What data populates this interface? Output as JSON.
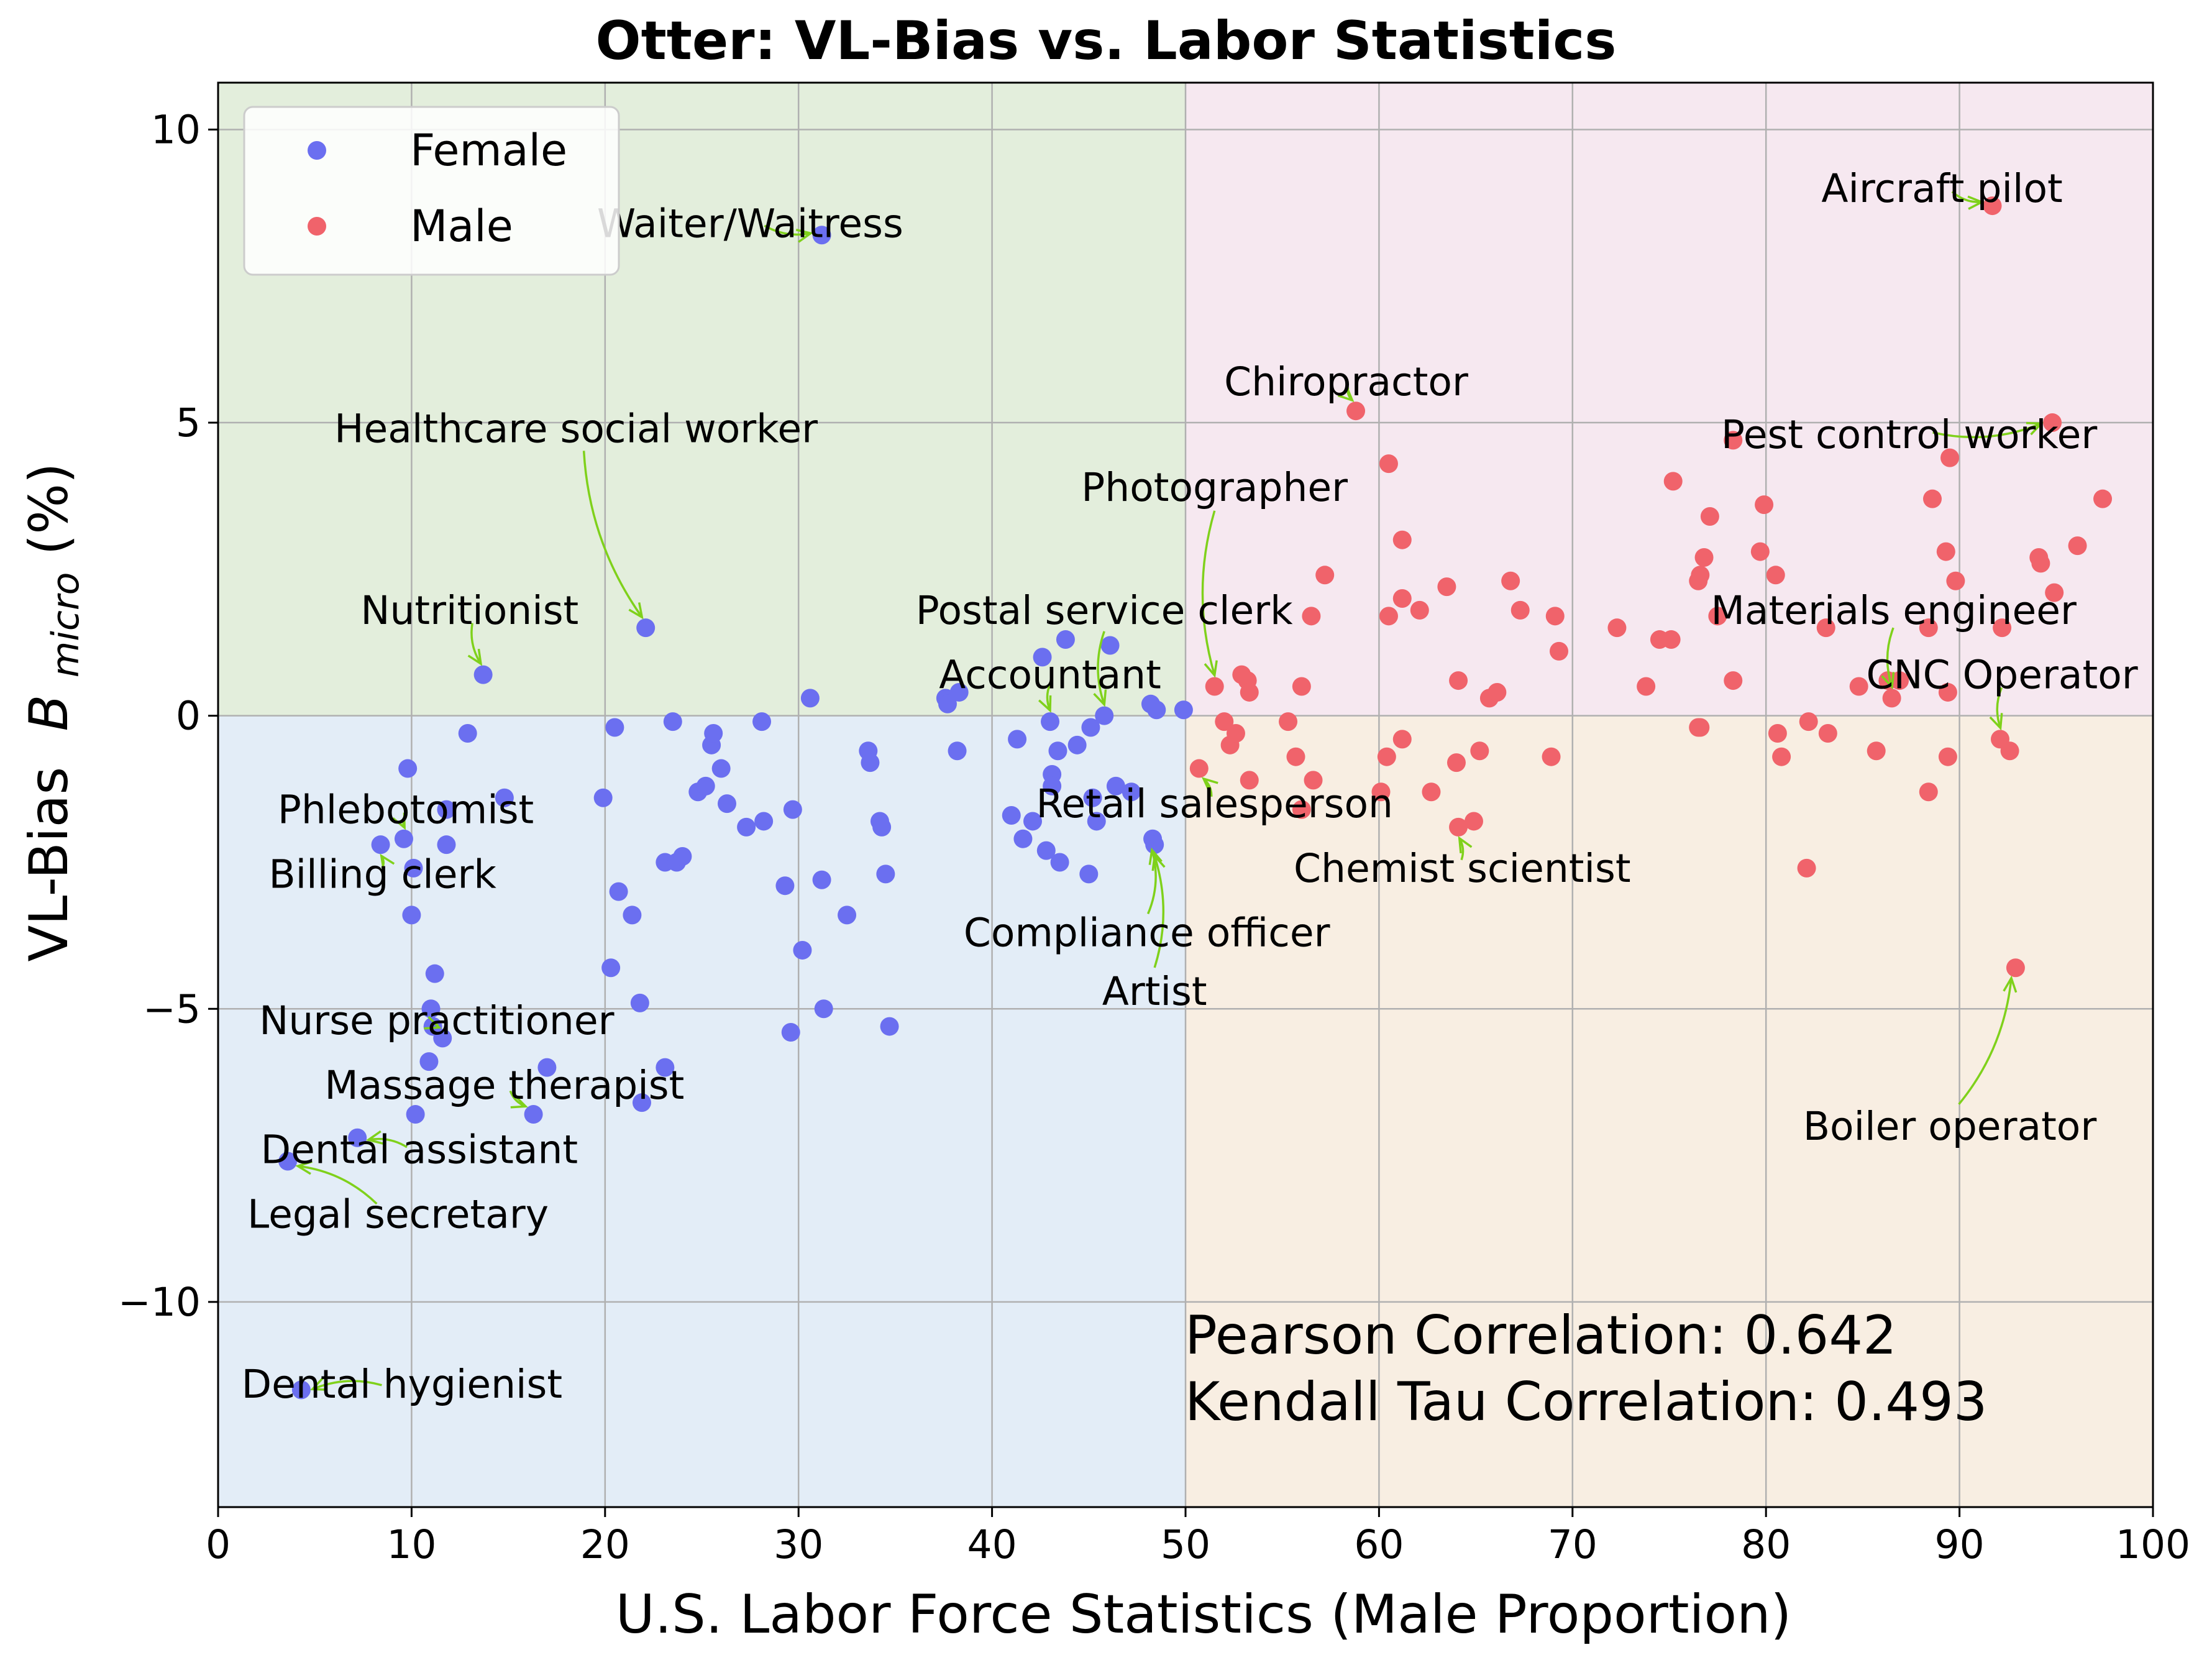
{
  "chart_data": {
    "type": "scatter",
    "title": "Otter: VL-Bias vs. Labor Statistics",
    "xlabel": "U.S. Labor Force Statistics (Male Proportion)",
    "ylabel_main": "VL-Bias",
    "ylabel_symbol": "B",
    "ylabel_sub": "micro",
    "ylabel_unit": "(%)",
    "xlim": [
      0,
      100
    ],
    "ylim": [
      -13.5,
      10.8
    ],
    "x_ticks": [
      0,
      10,
      20,
      30,
      40,
      50,
      60,
      70,
      80,
      90,
      100
    ],
    "y_ticks": [
      -10,
      -5,
      0,
      5,
      10
    ],
    "y_tick_labels": [
      "−10",
      "−5",
      "0",
      "5",
      "10"
    ],
    "grid": true,
    "legend_position": "top-left",
    "colors": {
      "female": "#6b6ff0",
      "male": "#f0636b",
      "quadrant_top_left": "#e3eedc",
      "quadrant_top_right": "#f6e8f0",
      "quadrant_bottom_left": "#e3edf7",
      "quadrant_bottom_right": "#f8eee2",
      "arrow": "#7fd11b"
    },
    "series": [
      {
        "name": "Female",
        "color": "#6b6ff0",
        "points": [
          [
            31.2,
            8.2
          ],
          [
            22.1,
            1.5
          ],
          [
            13.7,
            0.7
          ],
          [
            12.9,
            -0.3
          ],
          [
            14.8,
            -1.4
          ],
          [
            9.8,
            -0.9
          ],
          [
            9.6,
            -2.1
          ],
          [
            8.4,
            -2.2
          ],
          [
            10.1,
            -2.6
          ],
          [
            11.8,
            -1.6
          ],
          [
            11.8,
            -2.2
          ],
          [
            10.0,
            -3.4
          ],
          [
            11.2,
            -4.4
          ],
          [
            11.0,
            -5.0
          ],
          [
            11.1,
            -5.3
          ],
          [
            11.6,
            -5.5
          ],
          [
            10.9,
            -5.9
          ],
          [
            10.2,
            -6.8
          ],
          [
            7.2,
            -7.2
          ],
          [
            3.6,
            -7.6
          ],
          [
            4.3,
            -11.5
          ],
          [
            16.3,
            -6.8
          ],
          [
            17.0,
            -6.0
          ],
          [
            21.9,
            -6.6
          ],
          [
            23.1,
            -6.0
          ],
          [
            21.8,
            -4.9
          ],
          [
            20.3,
            -4.3
          ],
          [
            21.4,
            -3.4
          ],
          [
            20.7,
            -3.0
          ],
          [
            19.9,
            -1.4
          ],
          [
            20.5,
            -0.2
          ],
          [
            23.5,
            -0.1
          ],
          [
            23.1,
            -2.5
          ],
          [
            23.7,
            -2.5
          ],
          [
            24.0,
            -2.4
          ],
          [
            24.8,
            -1.3
          ],
          [
            25.2,
            -1.2
          ],
          [
            25.5,
            -0.5
          ],
          [
            25.6,
            -0.3
          ],
          [
            26.0,
            -0.9
          ],
          [
            26.3,
            -1.5
          ],
          [
            27.3,
            -1.9
          ],
          [
            28.2,
            -1.8
          ],
          [
            28.1,
            -0.1
          ],
          [
            29.3,
            -2.9
          ],
          [
            29.7,
            -1.6
          ],
          [
            29.6,
            -5.4
          ],
          [
            30.2,
            -4.0
          ],
          [
            30.6,
            0.3
          ],
          [
            31.2,
            -2.8
          ],
          [
            31.3,
            -5.0
          ],
          [
            32.5,
            -3.4
          ],
          [
            33.6,
            -0.6
          ],
          [
            33.7,
            -0.8
          ],
          [
            34.2,
            -1.8
          ],
          [
            34.3,
            -1.9
          ],
          [
            34.5,
            -2.7
          ],
          [
            34.7,
            -5.3
          ],
          [
            37.6,
            0.3
          ],
          [
            37.7,
            0.2
          ],
          [
            38.3,
            0.4
          ],
          [
            38.2,
            -0.6
          ],
          [
            41.0,
            -1.7
          ],
          [
            41.3,
            -0.4
          ],
          [
            41.6,
            -2.1
          ],
          [
            42.1,
            -1.8
          ],
          [
            42.6,
            1.0
          ],
          [
            42.8,
            -2.3
          ],
          [
            43.0,
            -0.1
          ],
          [
            43.1,
            -1.0
          ],
          [
            43.1,
            -1.2
          ],
          [
            43.4,
            -0.6
          ],
          [
            43.5,
            -2.5
          ],
          [
            43.8,
            1.3
          ],
          [
            44.4,
            -0.5
          ],
          [
            45.0,
            -2.7
          ],
          [
            45.1,
            -0.2
          ],
          [
            45.2,
            -1.4
          ],
          [
            45.4,
            -1.8
          ],
          [
            45.8,
            0.0
          ],
          [
            46.1,
            1.2
          ],
          [
            46.4,
            -1.2
          ],
          [
            47.2,
            -1.3
          ],
          [
            48.2,
            0.2
          ],
          [
            48.5,
            0.1
          ],
          [
            48.3,
            -2.1
          ],
          [
            48.4,
            -2.2
          ],
          [
            49.9,
            0.1
          ]
        ]
      },
      {
        "name": "Male",
        "color": "#f0636b",
        "points": [
          [
            91.7,
            8.7
          ],
          [
            58.8,
            5.2
          ],
          [
            60.5,
            4.3
          ],
          [
            57.2,
            2.4
          ],
          [
            56.5,
            1.7
          ],
          [
            61.2,
            3.0
          ],
          [
            61.2,
            2.0
          ],
          [
            62.1,
            1.8
          ],
          [
            60.5,
            1.7
          ],
          [
            63.5,
            2.2
          ],
          [
            66.8,
            2.3
          ],
          [
            67.3,
            1.8
          ],
          [
            69.1,
            1.7
          ],
          [
            69.3,
            1.1
          ],
          [
            72.3,
            1.5
          ],
          [
            75.2,
            4.0
          ],
          [
            74.5,
            1.3
          ],
          [
            75.1,
            1.3
          ],
          [
            76.5,
            2.3
          ],
          [
            76.6,
            2.4
          ],
          [
            76.8,
            2.7
          ],
          [
            77.1,
            3.4
          ],
          [
            77.5,
            1.7
          ],
          [
            73.8,
            0.5
          ],
          [
            78.3,
            4.7
          ],
          [
            79.9,
            3.6
          ],
          [
            79.7,
            2.8
          ],
          [
            80.5,
            2.4
          ],
          [
            83.1,
            1.5
          ],
          [
            84.8,
            0.5
          ],
          [
            78.3,
            0.6
          ],
          [
            80.6,
            -0.3
          ],
          [
            80.8,
            -0.7
          ],
          [
            82.2,
            -0.1
          ],
          [
            82.1,
            -2.6
          ],
          [
            83.2,
            -0.3
          ],
          [
            85.7,
            -0.6
          ],
          [
            86.3,
            0.6
          ],
          [
            86.5,
            0.3
          ],
          [
            86.9,
            0.6
          ],
          [
            88.4,
            1.5
          ],
          [
            88.6,
            3.7
          ],
          [
            89.3,
            2.8
          ],
          [
            89.5,
            4.4
          ],
          [
            89.8,
            2.3
          ],
          [
            89.4,
            0.4
          ],
          [
            89.4,
            -0.7
          ],
          [
            88.4,
            -1.3
          ],
          [
            92.2,
            1.5
          ],
          [
            92.1,
            -0.4
          ],
          [
            92.6,
            -0.6
          ],
          [
            94.1,
            2.7
          ],
          [
            94.2,
            2.6
          ],
          [
            94.8,
            5.0
          ],
          [
            94.9,
            2.1
          ],
          [
            96.1,
            2.9
          ],
          [
            97.4,
            3.7
          ],
          [
            92.9,
            -4.3
          ],
          [
            76.6,
            -0.2
          ],
          [
            76.5,
            -0.2
          ],
          [
            51.5,
            0.5
          ],
          [
            52.0,
            -0.1
          ],
          [
            52.3,
            -0.5
          ],
          [
            52.6,
            -0.3
          ],
          [
            52.9,
            0.7
          ],
          [
            53.2,
            0.6
          ],
          [
            53.3,
            0.4
          ],
          [
            53.3,
            -1.1
          ],
          [
            50.7,
            -0.9
          ],
          [
            55.3,
            -0.1
          ],
          [
            55.7,
            -0.7
          ],
          [
            56.0,
            0.5
          ],
          [
            56.0,
            -1.6
          ],
          [
            56.6,
            -1.1
          ],
          [
            60.1,
            -1.3
          ],
          [
            60.4,
            -0.7
          ],
          [
            61.2,
            -0.4
          ],
          [
            62.7,
            -1.3
          ],
          [
            64.0,
            -0.8
          ],
          [
            64.1,
            0.6
          ],
          [
            64.9,
            -1.8
          ],
          [
            64.1,
            -1.9
          ],
          [
            65.2,
            -0.6
          ],
          [
            65.7,
            0.3
          ],
          [
            66.1,
            0.4
          ],
          [
            68.9,
            -0.7
          ]
        ]
      }
    ],
    "annotations": [
      {
        "text": "Waiter/Waitress",
        "point": [
          31.2,
          8.2
        ],
        "label": [
          27.5,
          8.4
        ]
      },
      {
        "text": "Healthcare social worker",
        "point": [
          22.1,
          1.5
        ],
        "label": [
          18.5,
          4.9
        ]
      },
      {
        "text": "Nutritionist",
        "point": [
          13.7,
          0.7
        ],
        "label": [
          13.0,
          1.8
        ]
      },
      {
        "text": "Phlebotomist",
        "point": [
          9.6,
          -2.1
        ],
        "label": [
          9.7,
          -1.6
        ]
      },
      {
        "text": "Billing clerk",
        "point": [
          8.4,
          -2.2
        ],
        "label": [
          8.5,
          -2.7
        ]
      },
      {
        "text": "Nurse practitioner",
        "point": [
          11.6,
          -5.5
        ],
        "label": [
          11.3,
          -5.2
        ]
      },
      {
        "text": "Massage therapist",
        "point": [
          16.3,
          -6.8
        ],
        "label": [
          14.8,
          -6.3
        ]
      },
      {
        "text": "Dental assistant",
        "point": [
          7.2,
          -7.2
        ],
        "label": [
          10.4,
          -7.4
        ]
      },
      {
        "text": "Legal secretary",
        "point": [
          3.6,
          -7.6
        ],
        "label": [
          9.3,
          -8.5
        ]
      },
      {
        "text": "Dental hygienist",
        "point": [
          4.3,
          -11.5
        ],
        "label": [
          9.5,
          -11.4
        ]
      },
      {
        "text": "Postal service clerk",
        "point": [
          45.8,
          0.0
        ],
        "label": [
          45.8,
          1.8
        ]
      },
      {
        "text": "Accountant",
        "point": [
          43.0,
          -0.1
        ],
        "label": [
          43.0,
          0.7
        ]
      },
      {
        "text": "Photographer",
        "point": [
          51.5,
          0.5
        ],
        "label": [
          51.5,
          3.9
        ]
      },
      {
        "text": "Retail salesperson",
        "point": [
          50.7,
          -0.9
        ],
        "label": [
          51.5,
          -1.5
        ]
      },
      {
        "text": "Compliance officer",
        "point": [
          48.3,
          -2.1
        ],
        "label": [
          48.0,
          -3.7
        ]
      },
      {
        "text": "Artist",
        "point": [
          48.4,
          -2.2
        ],
        "label": [
          48.4,
          -4.7
        ]
      },
      {
        "text": "Chiropractor",
        "point": [
          58.8,
          5.2
        ],
        "label": [
          58.3,
          5.7
        ]
      },
      {
        "text": "Chemist scientist",
        "point": [
          64.1,
          -1.9
        ],
        "label": [
          64.3,
          -2.6
        ]
      },
      {
        "text": "Aircraft pilot",
        "point": [
          91.7,
          8.7
        ],
        "label": [
          89.1,
          9.0
        ]
      },
      {
        "text": "Pest control worker",
        "point": [
          94.8,
          5.0
        ],
        "label": [
          87.4,
          4.8
        ]
      },
      {
        "text": "Materials engineer",
        "point": [
          86.5,
          0.3
        ],
        "label": [
          86.6,
          1.8
        ]
      },
      {
        "text": "CNC Operator",
        "point": [
          92.1,
          -0.4
        ],
        "label": [
          92.2,
          0.7
        ]
      },
      {
        "text": "Boiler operator",
        "point": [
          92.9,
          -4.3
        ],
        "label": [
          89.5,
          -7.0
        ]
      }
    ],
    "pearson_text": "Pearson Correlation: 0.642",
    "kendall_text": "Kendall Tau Correlation: 0.493"
  }
}
